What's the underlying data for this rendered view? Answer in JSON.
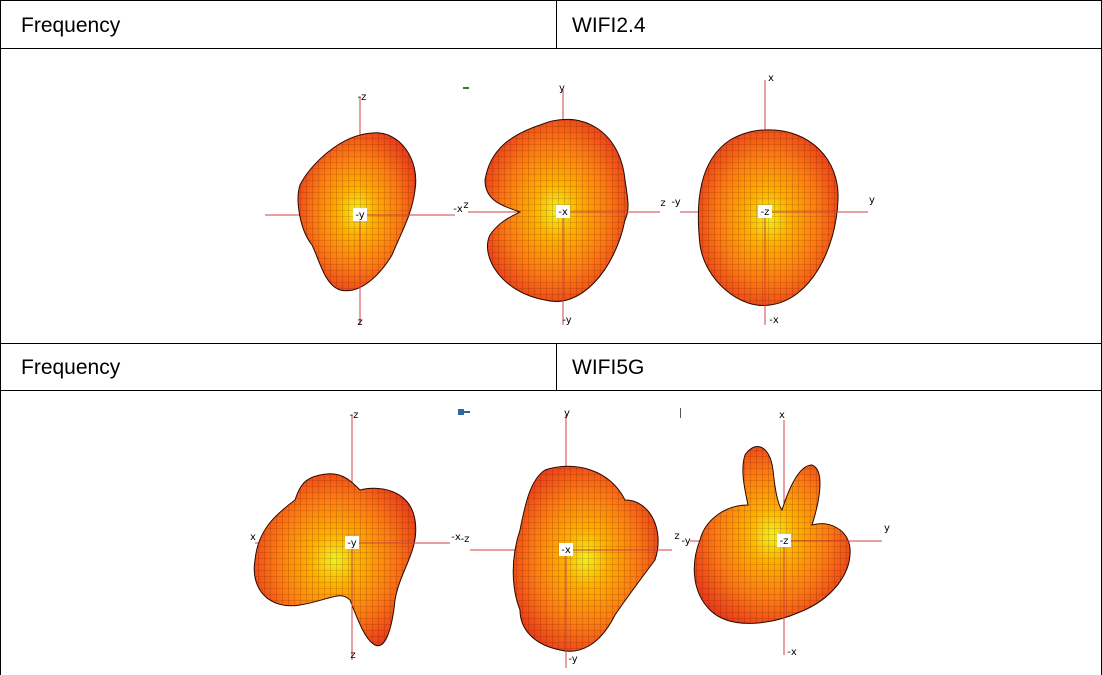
{
  "table": {
    "rows": [
      {
        "cells": [
          "Frequency",
          "WIFI2.4"
        ]
      },
      {
        "views": [
          {
            "top": "-z",
            "right": "-x",
            "center": "-y",
            "bottom": "z"
          },
          {
            "top": "y",
            "left": "z",
            "right": "z",
            "center": "-x",
            "bottom": "-y"
          },
          {
            "top": "x",
            "left": "-y",
            "right": "y",
            "center": "-z",
            "bottom": "-x"
          }
        ]
      },
      {
        "cells": [
          "Frequency",
          "WIFI5G"
        ]
      },
      {
        "views": [
          {
            "top": "-z",
            "left": "x",
            "right": "-x",
            "center": "-y",
            "bottom": "z"
          },
          {
            "top": "y",
            "left": "-z",
            "right": "z",
            "center": "-x",
            "bottom": "-y"
          },
          {
            "top": "x",
            "left": "-y",
            "right": "y",
            "center": "-z",
            "bottom": "-x"
          }
        ]
      }
    ]
  }
}
